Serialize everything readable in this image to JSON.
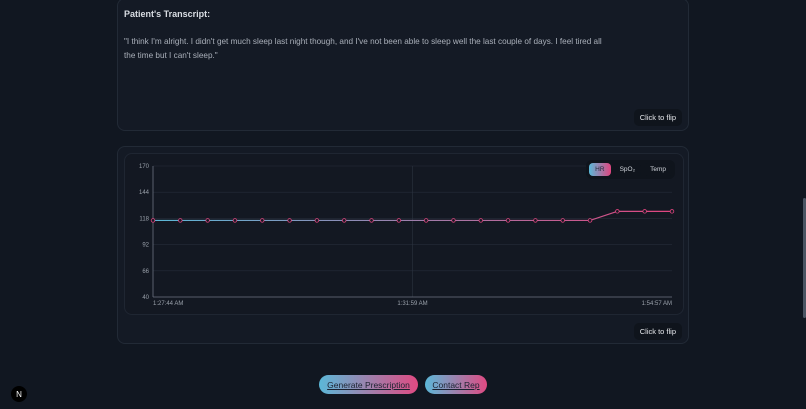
{
  "transcript": {
    "title": "Patient's Transcript:",
    "text": "\"I think I'm alright. I didn't get much sleep last night though, and I've not been able to sleep well the last couple of days. I feel tired all the time but I can't sleep.\"",
    "flip_label": "Click to flip"
  },
  "chart_card": {
    "flip_label": "Click to flip",
    "toggles": [
      "HR",
      "SpO₂",
      "Temp"
    ],
    "active_toggle": "HR"
  },
  "chart_data": {
    "type": "line",
    "series": [
      {
        "name": "HR",
        "values": [
          116,
          116,
          116,
          116,
          116,
          116,
          116,
          116,
          116,
          116,
          116,
          116,
          116,
          116,
          116,
          116,
          116,
          125,
          125,
          125
        ]
      }
    ],
    "ylim": [
      40,
      170
    ],
    "yticks": [
      170,
      144,
      118,
      92,
      66,
      40
    ],
    "xtick_labels": [
      "1:27:44 AM",
      "1:31:59 AM",
      "1:54:57 AM"
    ],
    "colors": {
      "start": "#5bb8d8",
      "end": "#e0457f"
    }
  },
  "actions": {
    "generate": "Generate Prescription",
    "contact": "Contact Rep"
  },
  "logo": "N"
}
